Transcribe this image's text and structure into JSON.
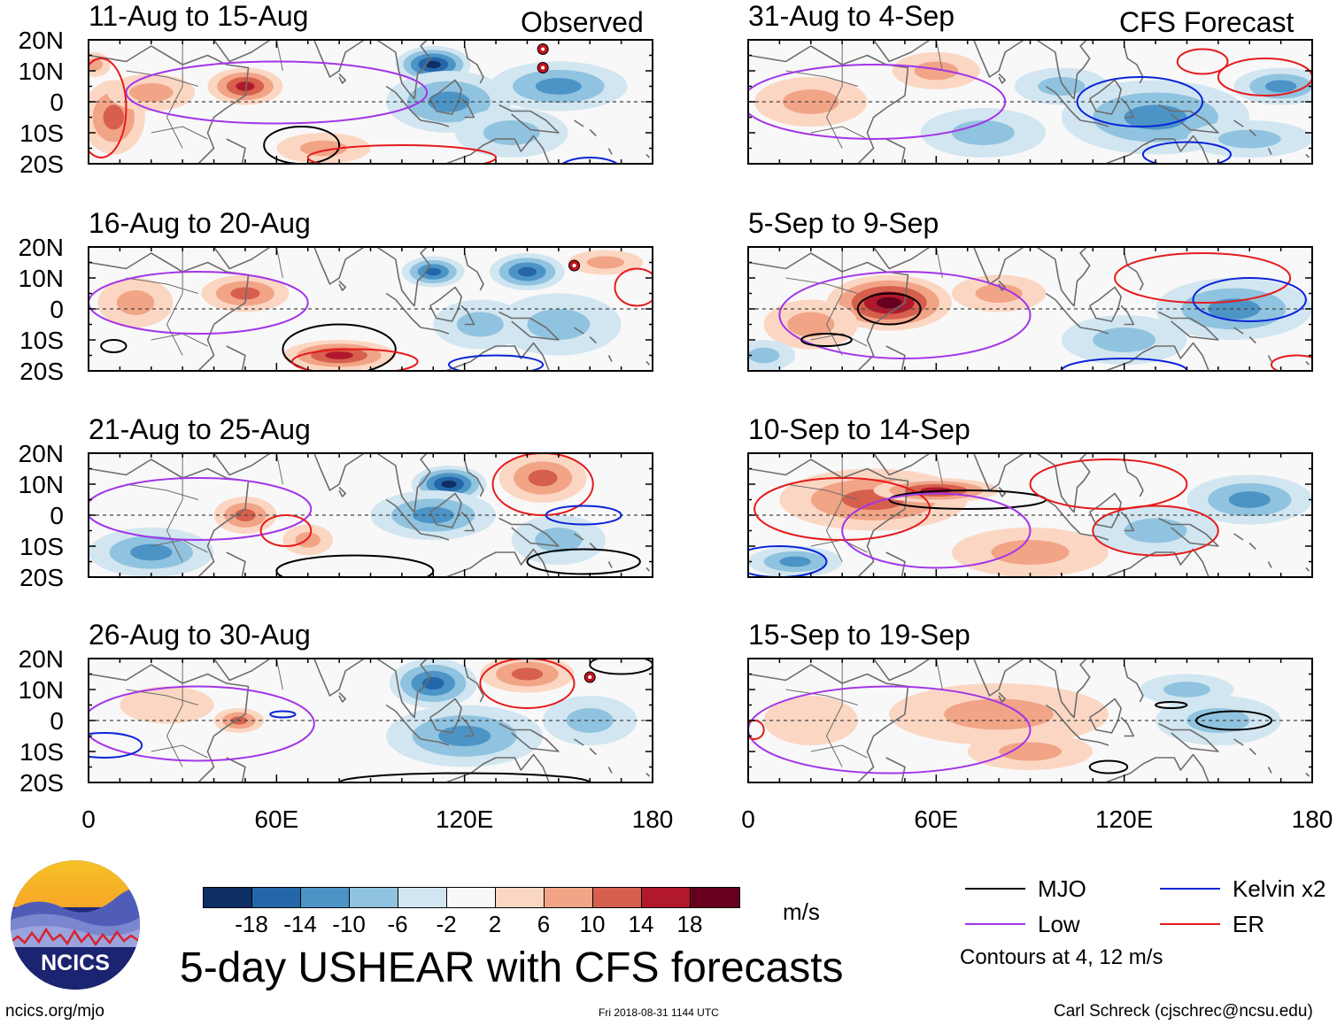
{
  "chart_data": {
    "type": "heatmap",
    "title": "5-day USHEAR with CFS forecasts",
    "variable": "USHEAR",
    "units": "m/s",
    "x_ticks": [
      "0",
      "60E",
      "120E",
      "180"
    ],
    "x_range": [
      0,
      180
    ],
    "y_ticks": [
      "20N",
      "10N",
      "0",
      "10S",
      "20S"
    ],
    "y_range": [
      -20,
      20
    ],
    "observed_label": "Observed",
    "forecast_label": "CFS Forecast",
    "colorbar": {
      "colors": [
        "#0d2f63",
        "#2467a9",
        "#4c94c6",
        "#90c3df",
        "#d2e6f1",
        "#f8f8f8",
        "#fbd7c3",
        "#f2a487",
        "#d6604d",
        "#b2182b",
        "#67001f"
      ],
      "tick_labels": [
        "-18",
        "-14",
        "-10",
        "-6",
        "-2",
        "2",
        "6",
        "10",
        "14",
        "18"
      ]
    },
    "panels": [
      {
        "period": "11-Aug to 15-Aug",
        "source": "Observed",
        "blobs": [
          [
            50,
            5,
            12,
            6,
            14
          ],
          [
            8,
            -5,
            10,
            12,
            10
          ],
          [
            20,
            3,
            14,
            6,
            6
          ],
          [
            110,
            12,
            12,
            6,
            -18
          ],
          [
            115,
            0,
            20,
            10,
            -10
          ],
          [
            150,
            5,
            22,
            8,
            -8
          ],
          [
            135,
            -10,
            18,
            8,
            -6
          ],
          [
            75,
            -15,
            15,
            5,
            6
          ],
          [
            2,
            12,
            5,
            4,
            6
          ]
        ],
        "contours": [
          [
            "Low",
            60,
            3,
            48,
            10
          ],
          [
            "MJO",
            68,
            -14,
            12,
            6
          ],
          [
            "ER",
            4,
            -2,
            8,
            16
          ],
          [
            "ER",
            100,
            -18,
            30,
            4
          ],
          [
            "Kelvin",
            160,
            -22,
            10,
            4
          ]
        ],
        "storms": [
          [
            145,
            17
          ],
          [
            145,
            11
          ]
        ]
      },
      {
        "period": "16-Aug to 20-Aug",
        "source": "Observed",
        "blobs": [
          [
            50,
            5,
            14,
            6,
            8
          ],
          [
            15,
            2,
            12,
            8,
            4
          ],
          [
            80,
            -15,
            18,
            5,
            12
          ],
          [
            110,
            12,
            10,
            5,
            -14
          ],
          [
            140,
            12,
            12,
            6,
            -14
          ],
          [
            150,
            -5,
            20,
            10,
            -6
          ],
          [
            125,
            -5,
            15,
            8,
            -6
          ],
          [
            165,
            15,
            12,
            4,
            6
          ]
        ],
        "contours": [
          [
            "Low",
            35,
            2,
            35,
            10
          ],
          [
            "MJO",
            80,
            -13,
            18,
            8
          ],
          [
            "MJO",
            8,
            -12,
            4,
            2
          ],
          [
            "ER",
            85,
            -17,
            20,
            4
          ],
          [
            "ER",
            175,
            7,
            7,
            6
          ],
          [
            "Kelvin",
            130,
            -18,
            15,
            3
          ]
        ],
        "storms": [
          [
            155,
            14
          ]
        ]
      },
      {
        "period": "21-Aug to 25-Aug",
        "source": "Observed",
        "blobs": [
          [
            50,
            0,
            10,
            6,
            10
          ],
          [
            115,
            10,
            12,
            6,
            -16
          ],
          [
            110,
            0,
            20,
            8,
            -8
          ],
          [
            145,
            12,
            14,
            8,
            8
          ],
          [
            20,
            -12,
            20,
            8,
            -8
          ],
          [
            150,
            -8,
            15,
            8,
            -6
          ],
          [
            70,
            -8,
            8,
            5,
            4
          ]
        ],
        "contours": [
          [
            "Low",
            35,
            2,
            36,
            10
          ],
          [
            "ER",
            145,
            10,
            16,
            10
          ],
          [
            "ER",
            63,
            -5,
            8,
            5
          ],
          [
            "MJO",
            85,
            -18,
            25,
            5
          ],
          [
            "MJO",
            158,
            -15,
            18,
            4
          ],
          [
            "Kelvin",
            158,
            0,
            12,
            3
          ]
        ],
        "storms": []
      },
      {
        "period": "26-Aug to 30-Aug",
        "source": "Observed",
        "blobs": [
          [
            48,
            0,
            8,
            4,
            8
          ],
          [
            110,
            12,
            14,
            8,
            -14
          ],
          [
            120,
            -5,
            25,
            10,
            -8
          ],
          [
            140,
            15,
            15,
            6,
            10
          ],
          [
            160,
            0,
            15,
            8,
            -4
          ],
          [
            25,
            5,
            15,
            6,
            3
          ]
        ],
        "contours": [
          [
            "Low",
            35,
            -1,
            37,
            12
          ],
          [
            "ER",
            140,
            12,
            15,
            8
          ],
          [
            "MJO",
            170,
            18,
            10,
            3
          ],
          [
            "MJO",
            120,
            -20,
            40,
            3
          ],
          [
            "Kelvin",
            5,
            -8,
            12,
            4
          ],
          [
            "Kelvin",
            62,
            2,
            4,
            1
          ]
        ],
        "storms": [
          [
            160,
            14
          ]
        ]
      },
      {
        "period": "31-Aug to 4-Sep",
        "source": "CFS Forecast",
        "blobs": [
          [
            20,
            0,
            18,
            8,
            6
          ],
          [
            60,
            10,
            14,
            6,
            4
          ],
          [
            130,
            -5,
            30,
            12,
            -8
          ],
          [
            170,
            5,
            15,
            6,
            -8
          ],
          [
            75,
            -10,
            20,
            8,
            -4
          ],
          [
            100,
            5,
            15,
            6,
            -4
          ],
          [
            160,
            -12,
            20,
            6,
            -6
          ]
        ],
        "contours": [
          [
            "Low",
            40,
            0,
            42,
            12
          ],
          [
            "Kelvin",
            125,
            0,
            20,
            8
          ],
          [
            "Kelvin",
            140,
            -17,
            14,
            4
          ],
          [
            "ER",
            165,
            8,
            15,
            6
          ],
          [
            "ER",
            145,
            13,
            8,
            4
          ]
        ],
        "storms": []
      },
      {
        "period": "5-Sep to 9-Sep",
        "source": "CFS Forecast",
        "blobs": [
          [
            45,
            2,
            20,
            9,
            16
          ],
          [
            20,
            -5,
            15,
            8,
            6
          ],
          [
            80,
            5,
            15,
            6,
            4
          ],
          [
            155,
            0,
            25,
            10,
            -10
          ],
          [
            120,
            -10,
            20,
            8,
            -6
          ],
          [
            5,
            -15,
            10,
            5,
            -4
          ]
        ],
        "contours": [
          [
            "Low",
            50,
            -2,
            40,
            14
          ],
          [
            "MJO",
            25,
            -10,
            8,
            2
          ],
          [
            "MJO",
            45,
            0,
            10,
            5
          ],
          [
            "ER",
            145,
            10,
            28,
            8
          ],
          [
            "Kelvin",
            160,
            3,
            18,
            7
          ],
          [
            "Kelvin",
            120,
            -20,
            20,
            4
          ],
          [
            "ER",
            175,
            -18,
            8,
            3
          ]
        ],
        "storms": []
      },
      {
        "period": "10-Sep to 14-Sep",
        "source": "CFS Forecast",
        "blobs": [
          [
            40,
            5,
            30,
            10,
            8
          ],
          [
            60,
            8,
            20,
            4,
            12
          ],
          [
            90,
            -12,
            25,
            8,
            6
          ],
          [
            160,
            5,
            20,
            8,
            -10
          ],
          [
            15,
            -15,
            15,
            5,
            -8
          ],
          [
            130,
            -5,
            20,
            8,
            -4
          ]
        ],
        "contours": [
          [
            "ER",
            30,
            2,
            28,
            10
          ],
          [
            "MJO",
            70,
            5,
            25,
            3
          ],
          [
            "Low",
            60,
            -5,
            30,
            12
          ],
          [
            "ER",
            115,
            10,
            25,
            8
          ],
          [
            "ER",
            130,
            -5,
            20,
            8
          ],
          [
            "Kelvin",
            10,
            -15,
            15,
            5
          ]
        ],
        "storms": []
      },
      {
        "period": "15-Sep to 19-Sep",
        "source": "CFS Forecast",
        "blobs": [
          [
            80,
            2,
            35,
            10,
            6
          ],
          [
            90,
            -10,
            20,
            6,
            6
          ],
          [
            150,
            0,
            20,
            8,
            -6
          ],
          [
            20,
            0,
            15,
            8,
            3
          ],
          [
            140,
            10,
            15,
            5,
            -4
          ]
        ],
        "contours": [
          [
            "Low",
            45,
            -3,
            45,
            14
          ],
          [
            "MJO",
            135,
            5,
            5,
            1
          ],
          [
            "MJO",
            155,
            0,
            12,
            3
          ],
          [
            "MJO",
            115,
            -15,
            6,
            2
          ],
          [
            "ER",
            2,
            -3,
            3,
            3
          ]
        ],
        "storms": []
      }
    ]
  },
  "legend": {
    "items": [
      {
        "label": "MJO",
        "color": "#000000"
      },
      {
        "label": "Low",
        "color": "#a335e8"
      },
      {
        "label": "Kelvin x2",
        "color": "#0a24d8"
      },
      {
        "label": "ER",
        "color": "#e51b1b"
      }
    ],
    "contours_note": "Contours at 4, 12 m/s"
  },
  "logo": {
    "text": "NCICS"
  },
  "footer": {
    "left": "ncics.org/mjo",
    "center": "Fri 2018-08-31 1144 UTC",
    "right": "Carl Schreck (cjschrec@ncsu.edu)"
  }
}
